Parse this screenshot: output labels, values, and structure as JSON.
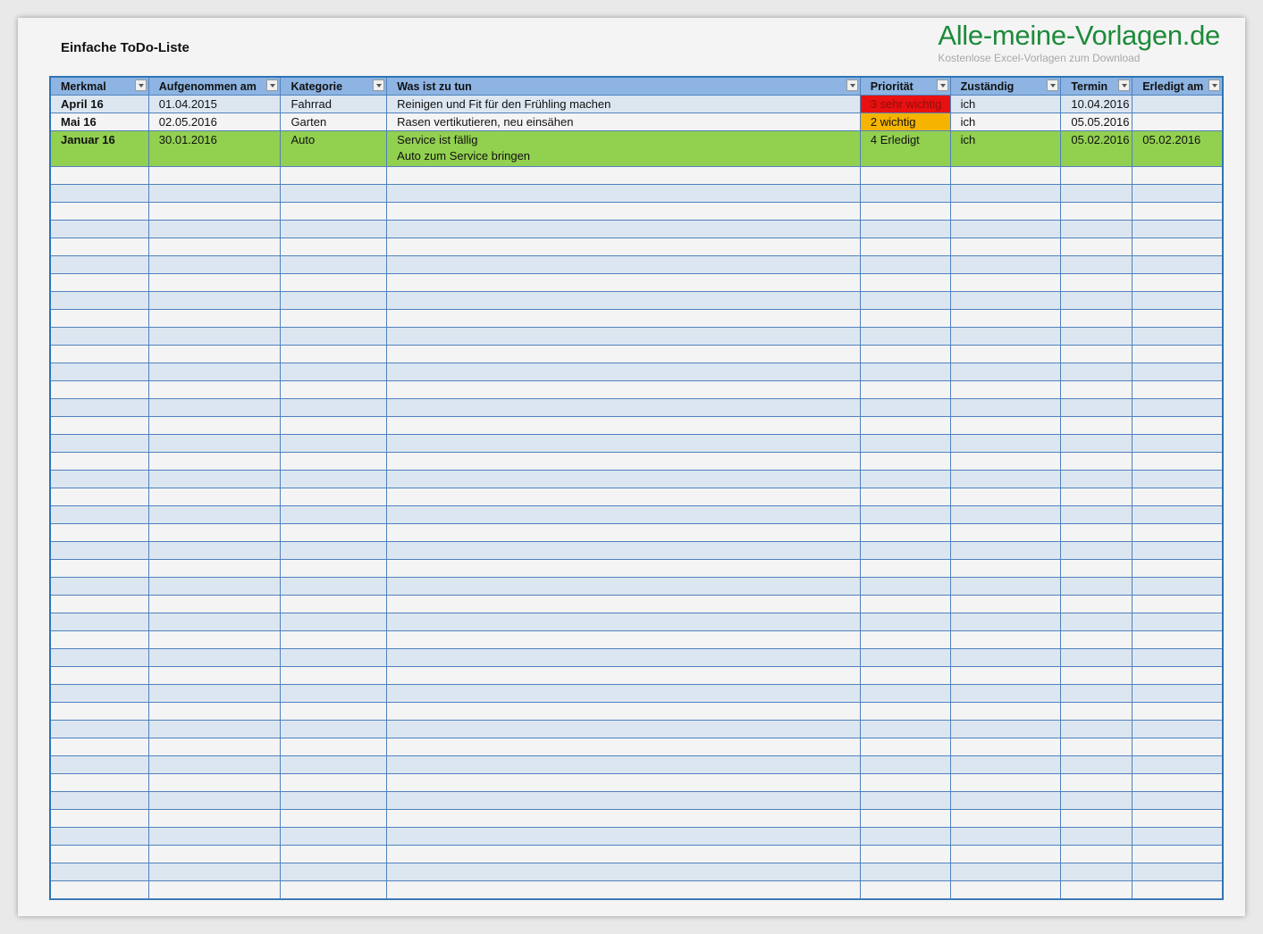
{
  "title": "Einfache ToDo-Liste",
  "brand": {
    "logo": "Alle-meine-Vorlagen.de",
    "tagline": "Kostenlose Excel-Vorlagen zum Download",
    "color": "#1d8a3a"
  },
  "columns": [
    "Merkmal",
    "Aufgenommen am",
    "Kategorie",
    "Was ist zu tun",
    "Priorität",
    "Zuständig",
    "Termin",
    "Erledigt am"
  ],
  "rows": [
    {
      "merkmal": "April 16",
      "aufgenommen": "01.04.2015",
      "kategorie": "Fahrrad",
      "aufgabe": [
        "Reinigen und Fit für den Frühling machen"
      ],
      "prioritaet": "3 sehr wichtig",
      "prioritaet_color": "#e81010",
      "zustaendig": "ich",
      "termin": "10.04.2016",
      "erledigt": "",
      "row_color": "#dce6f1"
    },
    {
      "merkmal": "Mai 16",
      "aufgenommen": "02.05.2016",
      "kategorie": "Garten",
      "aufgabe": [
        "Rasen vertikutieren, neu einsähen"
      ],
      "prioritaet": "2 wichtig",
      "prioritaet_color": "#f5b400",
      "zustaendig": "ich",
      "termin": "05.05.2016",
      "erledigt": "",
      "row_color": "#f4f4f4"
    },
    {
      "merkmal": "Januar 16",
      "aufgenommen": "30.01.2016",
      "kategorie": "Auto",
      "aufgabe": [
        "Service ist fällig",
        "Auto zum Service bringen"
      ],
      "prioritaet": "4 Erledigt",
      "prioritaet_color": "#92d050",
      "zustaendig": "ich",
      "termin": "05.02.2016",
      "erledigt": "05.02.2016",
      "row_color": "#92d050"
    }
  ],
  "colors": {
    "header": "#8db4e2",
    "band": "#dce6f1",
    "border": "#4f81bd"
  }
}
